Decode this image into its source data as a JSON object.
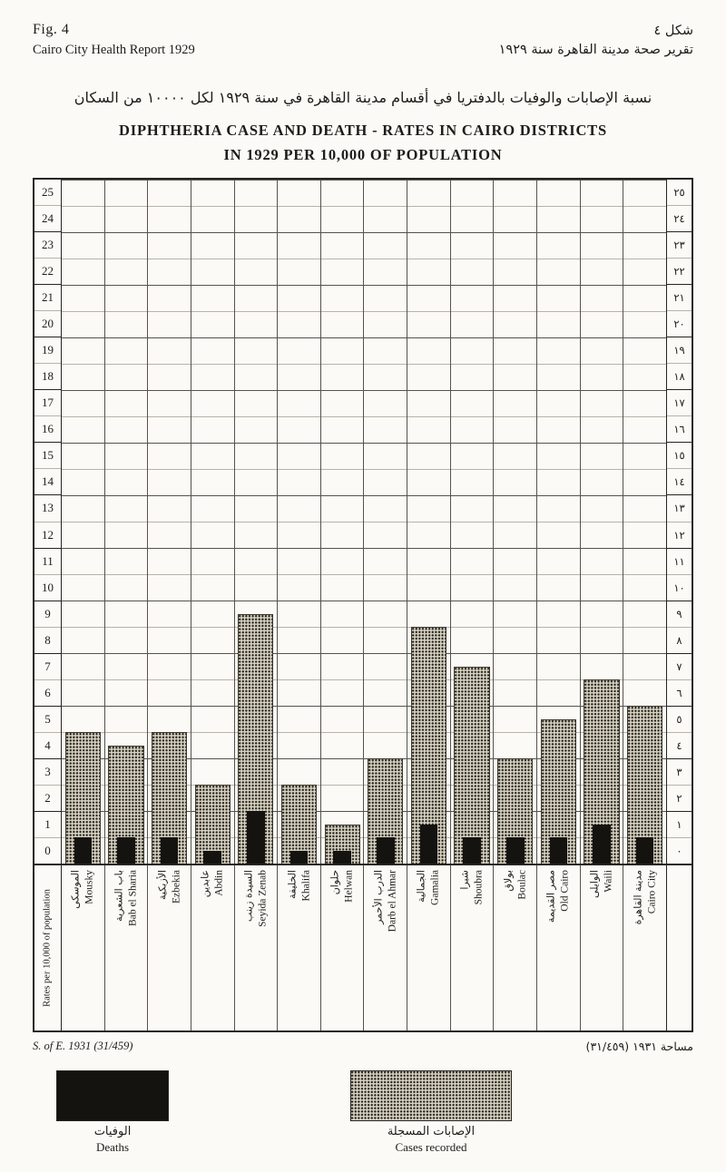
{
  "header": {
    "fig_label": "Fig. 4",
    "report_title": "Cairo City Health Report 1929",
    "fig_label_ar": "شكل ٤",
    "report_title_ar": "تقرير صحة مدينة القاهرة سنة ١٩٢٩",
    "title_ar": "نسبة الإصابات والوفيات بالدفتريا في أقسام مدينة القاهرة في سنة ١٩٢٩ لكل ١٠٠٠٠ من السكان",
    "title_en_line1": "DIPHTHERIA CASE AND DEATH - RATES IN CAIRO DISTRICTS",
    "title_en_line2": "IN 1929 PER 10,000 OF POPULATION"
  },
  "chart_data": {
    "type": "bar",
    "title": "Diphtheria case and death-rates in Cairo districts in 1929 per 10,000 of population",
    "ylabel": "Rates per 10,000 of population",
    "xlabel": "",
    "ylim": [
      0,
      26
    ],
    "grid": true,
    "legend_position": "bottom",
    "categories": [
      "Mousky",
      "Bab el Sharia",
      "Ezbekia",
      "Abdin",
      "Seyida Zenab",
      "Khalifa",
      "Helwan",
      "Darb el Ahmar",
      "Gamalia",
      "Shoubra",
      "Boulac",
      "Old Cairo",
      "Waili",
      "Cairo City"
    ],
    "categories_ar": [
      "الموسكى",
      "باب الشعرية",
      "الأزبكية",
      "عابدين",
      "السيدة زينب",
      "الخليفة",
      "حلوان",
      "الدرب الأحمر",
      "الجمالية",
      "شبرا",
      "بولاق",
      "مصر القديمة",
      "الوايلى",
      "مدينة القاهرة"
    ],
    "series": [
      {
        "name": "Cases recorded",
        "style": "stippled",
        "values": [
          5,
          4.5,
          5,
          3,
          9.5,
          3,
          1.5,
          4,
          9,
          7.5,
          4,
          5.5,
          7,
          6
        ]
      },
      {
        "name": "Deaths",
        "style": "solid-black",
        "values": [
          1,
          1,
          1,
          0.5,
          2,
          0.5,
          0.5,
          1,
          1.5,
          1,
          1,
          1,
          1.5,
          1
        ]
      }
    ],
    "y_ticks_left": [
      "25",
      "24",
      "23",
      "22",
      "21",
      "20",
      "19",
      "18",
      "17",
      "16",
      "15",
      "14",
      "13",
      "12",
      "11",
      "10",
      "9",
      "8",
      "7",
      "6",
      "5",
      "4",
      "3",
      "2",
      "1",
      "0"
    ],
    "y_ticks_right": [
      "٢٥",
      "٢٤",
      "٢٣",
      "٢٢",
      "٢١",
      "٢٠",
      "١٩",
      "١٨",
      "١٧",
      "١٦",
      "١٥",
      "١٤",
      "١٣",
      "١٢",
      "١١",
      "١٠",
      "٩",
      "٨",
      "٧",
      "٦",
      "٥",
      "٤",
      "٣",
      "٢",
      "١",
      "٠"
    ]
  },
  "legend": {
    "deaths_label": "Deaths",
    "deaths_label_ar": "الوفيات",
    "cases_label": "Cases recorded",
    "cases_label_ar": "الإصابات المسجلة"
  },
  "footer": {
    "source_note": "S. of E. 1931 (31/459)",
    "source_note_ar": "مساحة ١٩٣١ (٣١/٤٥٩)"
  }
}
